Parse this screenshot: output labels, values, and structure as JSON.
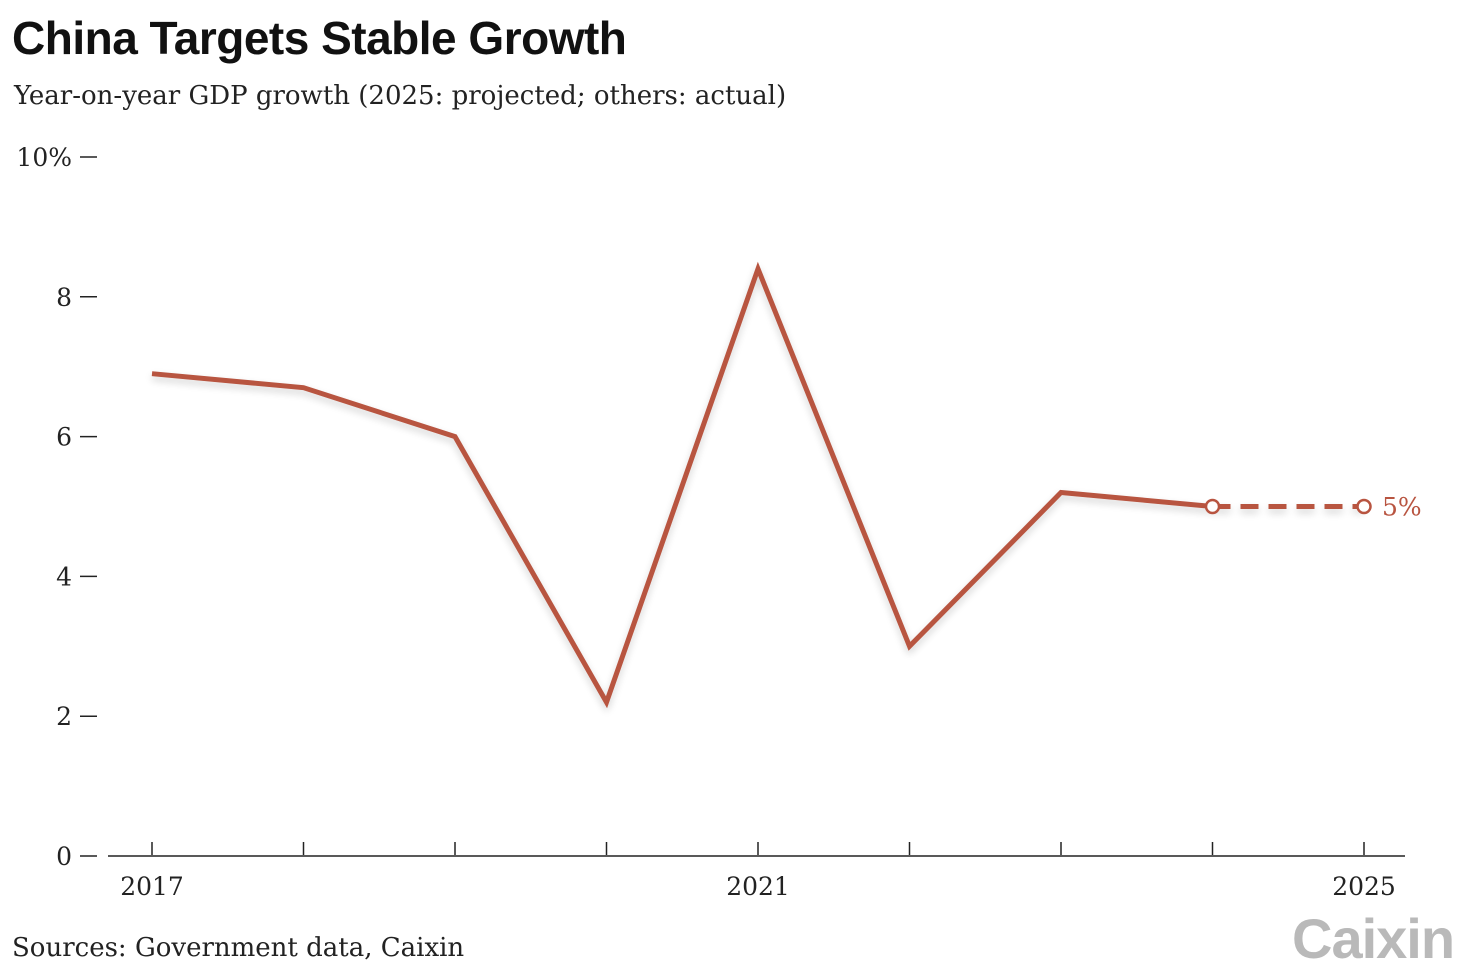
{
  "header": {
    "title": "China Targets Stable Growth",
    "subtitle": "Year-on-year GDP growth (2025: projected; others: actual)"
  },
  "footer": {
    "source": "Sources: Government data, Caixin",
    "logo_text": "Caixin"
  },
  "colors": {
    "line": "#b85440",
    "axis": "#222222"
  },
  "chart_data": {
    "type": "line",
    "title": "China Targets Stable Growth",
    "subtitle": "Year-on-year GDP growth (2025: projected; others: actual)",
    "xlabel": "",
    "ylabel": "",
    "x": [
      2017,
      2018,
      2019,
      2020,
      2021,
      2022,
      2023,
      2024,
      2025
    ],
    "x_tick_labels": [
      {
        "value": 2017,
        "label": "2017"
      },
      {
        "value": 2021,
        "label": "2021"
      },
      {
        "value": 2025,
        "label": "2025"
      }
    ],
    "y_tick_labels": [
      {
        "value": 0,
        "label": "0"
      },
      {
        "value": 2,
        "label": "2"
      },
      {
        "value": 4,
        "label": "4"
      },
      {
        "value": 6,
        "label": "6"
      },
      {
        "value": 8,
        "label": "8"
      },
      {
        "value": 10,
        "label": "10%"
      }
    ],
    "xlim": [
      2017,
      2025
    ],
    "ylim": [
      0,
      10
    ],
    "grid": false,
    "series": [
      {
        "style": "solid",
        "x": [
          2017,
          2018,
          2019,
          2020,
          2021,
          2022,
          2023,
          2024
        ],
        "values": [
          6.9,
          6.7,
          6.0,
          2.2,
          8.4,
          3.0,
          5.2,
          5.0
        ]
      },
      {
        "style": "dashed",
        "x": [
          2024,
          2025
        ],
        "values": [
          5.0,
          5.0
        ]
      }
    ],
    "annotations": [
      {
        "x": 2025,
        "y": 5.0,
        "text": "5%"
      }
    ]
  }
}
